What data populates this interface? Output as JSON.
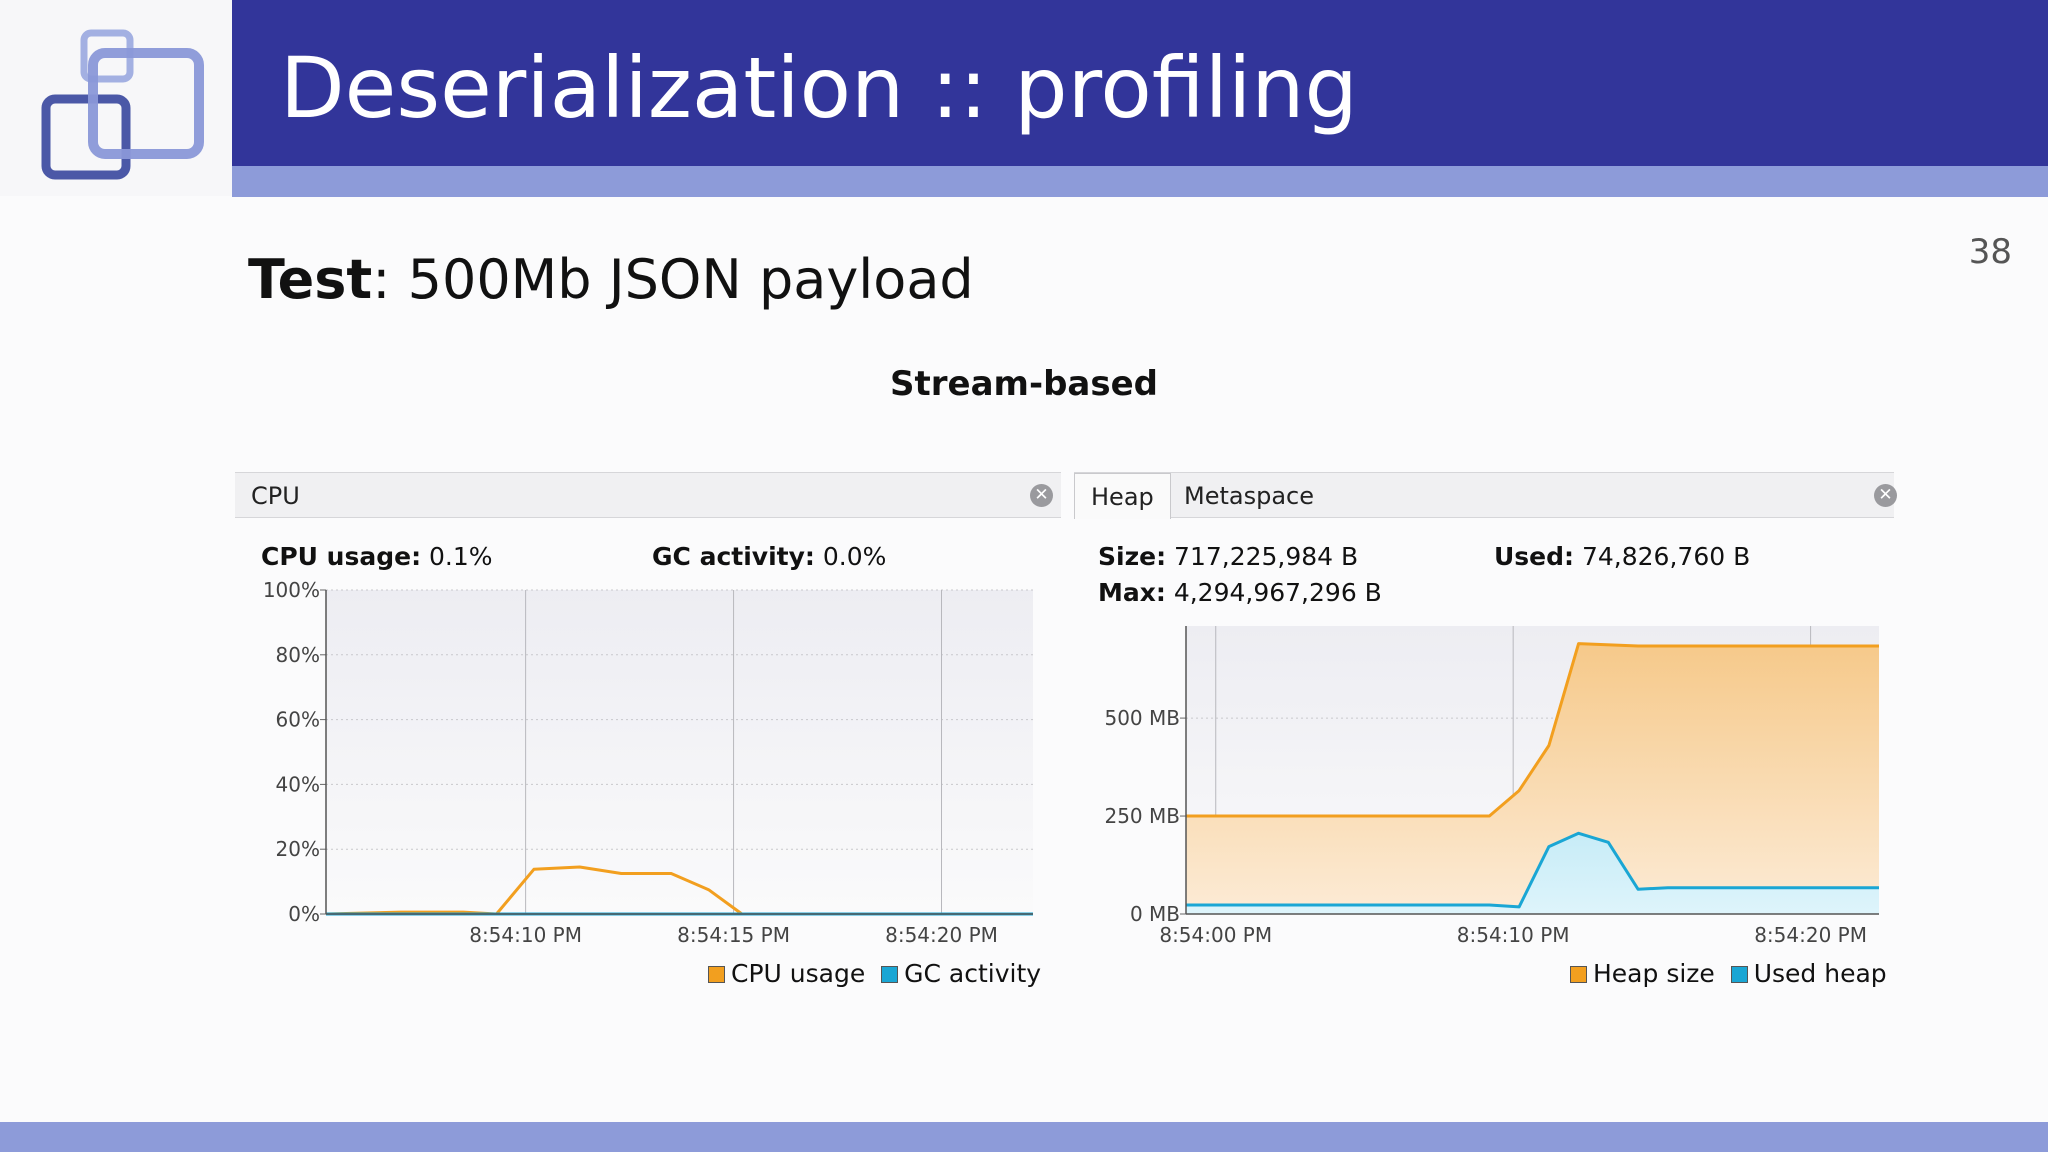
{
  "slide": {
    "title": "Deserialization :: profiling",
    "page_number": "38",
    "test_label": "Test",
    "test_text": ": 500Mb JSON payload",
    "caption": "Stream-based"
  },
  "colors": {
    "title_bar": "#32359a",
    "strip": "#8d9bd9",
    "orange": "#f29f1f",
    "blue": "#1aa6d4"
  },
  "cpu_panel": {
    "tab_label": "CPU",
    "usage_label": "CPU usage:",
    "usage_value": "0.1%",
    "gc_label": "GC activity:",
    "gc_value": "0.0%",
    "legend_cpu": "CPU usage",
    "legend_gc": "GC activity"
  },
  "heap_panel": {
    "tab_heap": "Heap",
    "tab_metaspace": "Metaspace",
    "size_label": "Size:",
    "size_value": "717,225,984 B",
    "used_label": "Used:",
    "used_value": "74,826,760 B",
    "max_label": "Max:",
    "max_value": "4,294,967,296 B",
    "legend_heap": "Heap size",
    "legend_used": "Used heap"
  },
  "chart_data": [
    {
      "type": "line",
      "y_ticks": [
        "100%",
        "80%",
        "60%",
        "40%",
        "20%",
        "0%"
      ],
      "y_tick_values": [
        100,
        80,
        60,
        40,
        20,
        0
      ],
      "ylim": [
        0,
        100
      ],
      "x_tick_labels": [
        "8:54:10 PM",
        "8:54:15 PM",
        "8:54:20 PM"
      ],
      "x_tick_values": [
        10,
        15,
        20
      ],
      "xlim": [
        5.2,
        22.2
      ],
      "grid": true,
      "legend": "bottom-right",
      "series": [
        {
          "name": "CPU usage",
          "color": "#f29f1f",
          "x": [
            5.2,
            7.0,
            8.5,
            9.3,
            10.2,
            11.3,
            12.3,
            13.5,
            14.4,
            15.2,
            22.2
          ],
          "y": [
            0,
            0.6,
            0.6,
            0,
            13.8,
            14.5,
            12.5,
            12.5,
            7.5,
            0,
            0
          ]
        },
        {
          "name": "GC activity",
          "color": "#1aa6d4",
          "x": [
            5.2,
            22.2
          ],
          "y": [
            0,
            0
          ]
        }
      ]
    },
    {
      "type": "area",
      "y_ticks": [
        "500 MB",
        "250 MB",
        "0 MB"
      ],
      "y_tick_values": [
        500,
        250,
        0
      ],
      "ylim": [
        0,
        735
      ],
      "x_tick_labels": [
        "8:54:00 PM",
        "8:54:10 PM",
        "8:54:20 PM"
      ],
      "x_tick_values": [
        0,
        10,
        20
      ],
      "xlim": [
        -1,
        22.3
      ],
      "grid": true,
      "legend": "bottom-right",
      "series": [
        {
          "name": "Heap size",
          "color": "#f29f1f",
          "x": [
            -1,
            9.2,
            10.2,
            11.2,
            12.2,
            14.2,
            22.3
          ],
          "y": [
            250,
            250,
            315,
            430,
            690,
            684,
            684
          ]
        },
        {
          "name": "Used heap",
          "color": "#1aa6d4",
          "x": [
            -1,
            9.2,
            10.2,
            11.2,
            12.2,
            13.2,
            14.2,
            15.2,
            22.3
          ],
          "y": [
            23,
            23,
            18,
            172,
            206,
            183,
            63,
            67,
            67
          ]
        }
      ]
    }
  ]
}
